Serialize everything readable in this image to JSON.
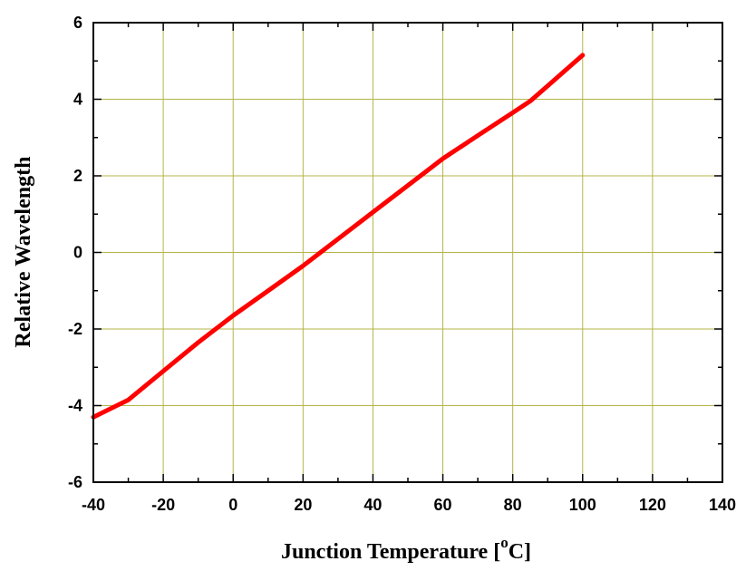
{
  "chart_data": {
    "type": "line",
    "title": "",
    "xlabel": {
      "prefix": "Junction Temperature [",
      "superscript": "o",
      "suffix": "C]"
    },
    "ylabel": "Relative Wavelength",
    "xlim": [
      -40,
      140
    ],
    "ylim": [
      -6,
      6
    ],
    "x_ticks": [
      -40,
      -20,
      0,
      20,
      40,
      60,
      80,
      100,
      120,
      140
    ],
    "x_tick_labels": [
      "-40",
      "-20",
      "0",
      "20",
      "40",
      "60",
      "80",
      "100",
      "120",
      "140"
    ],
    "y_ticks": [
      -6,
      -4,
      -2,
      0,
      2,
      4,
      6
    ],
    "y_tick_labels": [
      "-6",
      "-4",
      "-2",
      "0",
      "2",
      "4",
      "6"
    ],
    "grid": true,
    "grid_color": "#b5b54a",
    "series": [
      {
        "color": "#ff0000",
        "x": [
          -40,
          -30,
          -20,
          -10,
          0,
          10,
          20,
          25,
          30,
          40,
          50,
          60,
          70,
          80,
          85,
          90,
          100
        ],
        "y": [
          -4.3,
          -3.85,
          -3.1,
          -2.35,
          -1.65,
          -1.0,
          -0.35,
          0.0,
          0.35,
          1.05,
          1.75,
          2.45,
          3.05,
          3.65,
          3.95,
          4.35,
          5.15
        ]
      }
    ]
  }
}
